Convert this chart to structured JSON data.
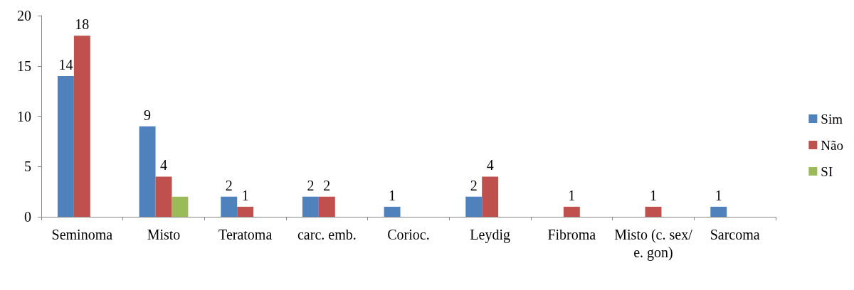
{
  "chart_data": {
    "type": "bar",
    "categories": [
      "Seminoma",
      "Misto",
      "Teratoma",
      "carc. emb.",
      "Corioc.",
      "Leydig",
      "Fibroma",
      "Misto (c. sex/e. gon)",
      "Sarcoma"
    ],
    "series": [
      {
        "name": "Sim",
        "color": "#4f81bd",
        "values": [
          14,
          9,
          2,
          2,
          1,
          2,
          null,
          null,
          1
        ],
        "value_labels": [
          "14",
          "9",
          "2",
          "2",
          "1",
          "2",
          null,
          null,
          "1"
        ]
      },
      {
        "name": "Não",
        "color": "#c0504d",
        "values": [
          18,
          4,
          1,
          2,
          null,
          4,
          1,
          1,
          null
        ],
        "value_labels": [
          "18",
          "4",
          "1",
          "2",
          null,
          "4",
          "1",
          "1",
          null
        ]
      },
      {
        "name": "SI",
        "color": "#9bbb59",
        "values": [
          null,
          2,
          null,
          null,
          null,
          null,
          null,
          null,
          null
        ],
        "value_labels": [
          null,
          null,
          null,
          null,
          null,
          null,
          null,
          null,
          null
        ]
      }
    ],
    "ylim": [
      0,
      20
    ],
    "yticks": [
      0,
      5,
      10,
      15,
      20
    ],
    "grid": false,
    "legend": "right"
  }
}
